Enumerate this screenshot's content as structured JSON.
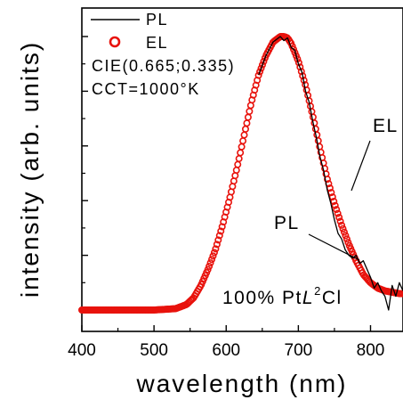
{
  "chart_data": {
    "type": "line",
    "xlabel": "wavelength (nm)",
    "ylabel": "intensity (arb. units)",
    "xlim": [
      400,
      845
    ],
    "ylim": [
      0,
      1.04
    ],
    "x_ticks": [
      "400",
      "500",
      "600",
      "700",
      "800"
    ],
    "y_tick_labels_shown": false,
    "legend_position": "top-left",
    "legend": [
      {
        "label": "PL",
        "marker": "line"
      },
      {
        "label": "EL",
        "marker": "circle"
      }
    ],
    "info_lines": [
      "CIE(0.665;0.335)",
      "CCT=1000°K"
    ],
    "sample_label": {
      "prefix": "100% Pt",
      "italic": "L",
      "superscript": "2",
      "suffix": "Cl"
    },
    "annotations": [
      "EL",
      "PL"
    ],
    "colors": {
      "PL": "#000000",
      "EL": "#e8120c"
    },
    "series": [
      {
        "name": "EL",
        "style": "open-circles",
        "x": [
          400,
          500,
          530,
          545,
          555,
          565,
          575,
          585,
          595,
          605,
          615,
          625,
          635,
          645,
          655,
          665,
          675,
          680,
          685,
          690,
          700,
          710,
          720,
          730,
          740,
          750,
          760,
          770,
          780,
          790,
          800,
          810,
          820,
          830,
          840,
          845
        ],
        "y": [
          0.0,
          0.0,
          0.005,
          0.02,
          0.045,
          0.09,
          0.15,
          0.22,
          0.31,
          0.41,
          0.52,
          0.64,
          0.76,
          0.86,
          0.93,
          0.98,
          1.0,
          1.0,
          0.995,
          0.975,
          0.91,
          0.82,
          0.71,
          0.59,
          0.48,
          0.39,
          0.31,
          0.24,
          0.18,
          0.13,
          0.1,
          0.08,
          0.07,
          0.065,
          0.06,
          0.06
        ]
      },
      {
        "name": "PL",
        "style": "line",
        "x": [
          645,
          655,
          665,
          675,
          680,
          685,
          690,
          695,
          700,
          705,
          710,
          715,
          720,
          725,
          730,
          735,
          740,
          745,
          750,
          755,
          760,
          765,
          770,
          775,
          780,
          785,
          790,
          795,
          800,
          805,
          810,
          815,
          820,
          825,
          830,
          835,
          840,
          845
        ],
        "y": [
          0.86,
          0.93,
          0.98,
          1.0,
          0.985,
          0.995,
          0.96,
          0.95,
          0.9,
          0.87,
          0.8,
          0.76,
          0.69,
          0.63,
          0.56,
          0.51,
          0.44,
          0.39,
          0.33,
          0.28,
          0.26,
          0.22,
          0.2,
          0.19,
          0.2,
          0.17,
          0.18,
          0.15,
          0.12,
          0.08,
          0.1,
          0.07,
          0.05,
          0.0,
          0.09,
          0.05,
          0.1,
          0.07
        ]
      }
    ]
  }
}
